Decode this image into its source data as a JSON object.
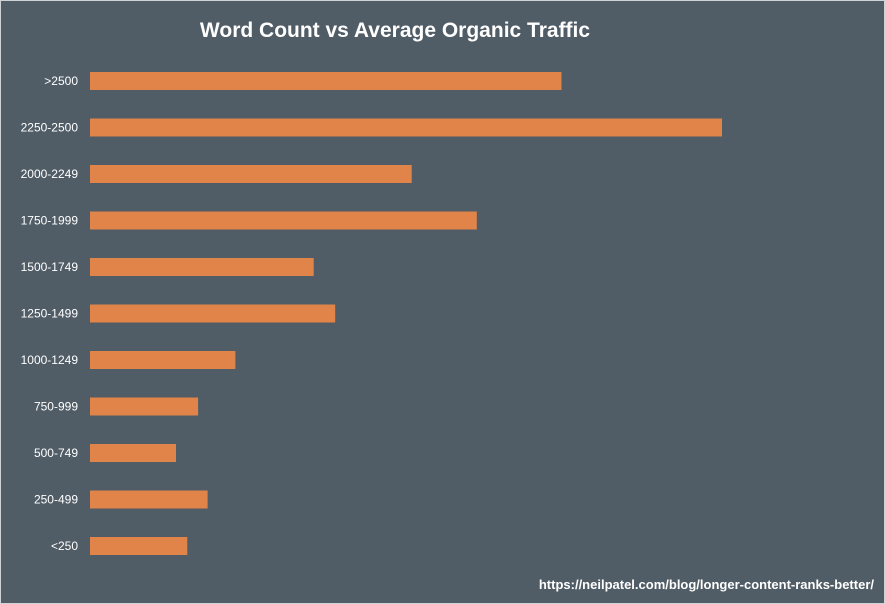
{
  "colors": {
    "background": "#505c66",
    "bar": "#e0844a",
    "text": "#ffffff"
  },
  "chart_data": {
    "type": "bar",
    "orientation": "horizontal",
    "title": "Word Count vs Average Organic Traffic",
    "xlabel": "",
    "ylabel": "",
    "grid": false,
    "legend": "none",
    "xlim": [
      0,
      100
    ],
    "categories": [
      ">2500",
      "2250-2500",
      "2000-2249",
      "1750-1999",
      "1500-1749",
      "1250-1499",
      "1000-1249",
      "750-999",
      "500-749",
      "250-499",
      "<250"
    ],
    "values": [
      74.6,
      100,
      50.9,
      61.2,
      35.4,
      38.8,
      23.0,
      17.1,
      13.6,
      18.6,
      15.4
    ]
  },
  "source": {
    "text": "https://neilpatel.com/blog/longer-content-ranks-better/"
  }
}
